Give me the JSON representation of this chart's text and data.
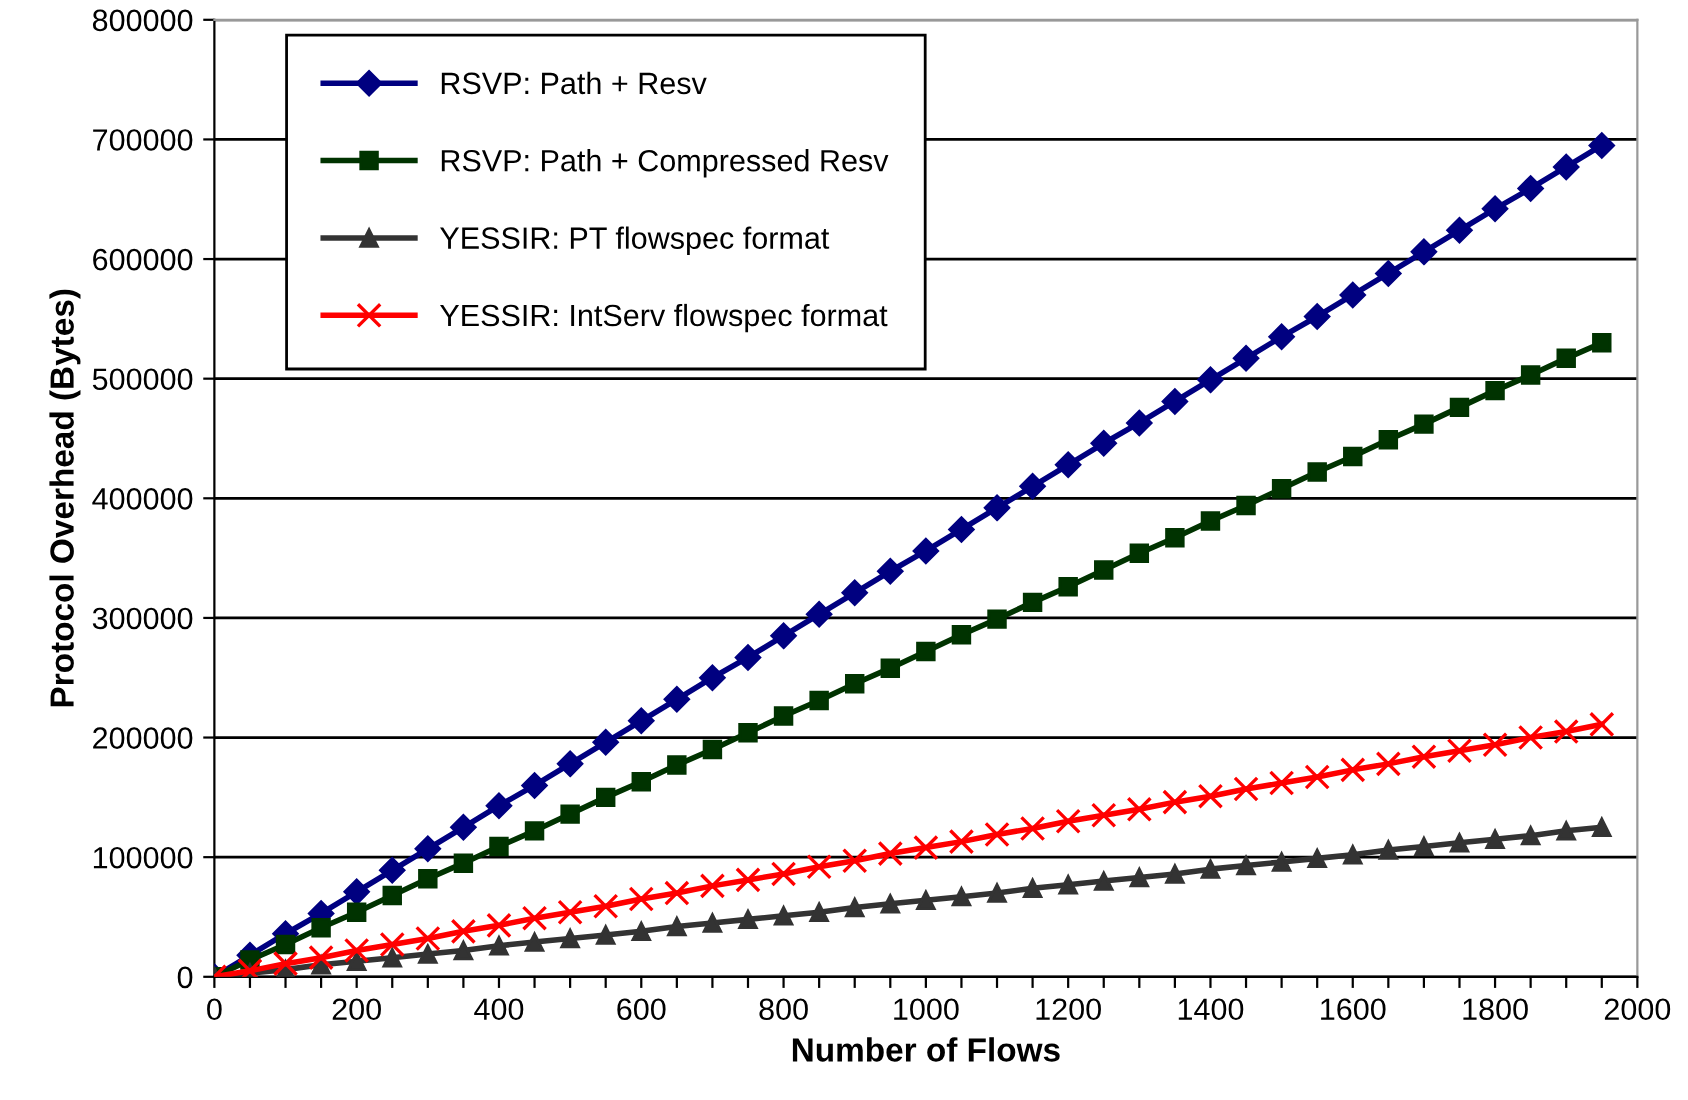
{
  "chart_data": {
    "type": "line",
    "xlabel": "Number of Flows",
    "ylabel": "Protocol Overhead (Bytes)",
    "x": [
      0,
      50,
      100,
      150,
      200,
      250,
      300,
      350,
      400,
      450,
      500,
      550,
      600,
      650,
      700,
      750,
      800,
      850,
      900,
      950,
      1000,
      1050,
      1100,
      1150,
      1200,
      1250,
      1300,
      1350,
      1400,
      1450,
      1500,
      1550,
      1600,
      1650,
      1700,
      1750,
      1800,
      1850,
      1900,
      1950
    ],
    "series": [
      {
        "name": "RSVP: Path + Resv",
        "color": "#000080",
        "marker": "diamond",
        "values": [
          0,
          18000,
          36000,
          53000,
          71000,
          89000,
          107000,
          125000,
          143000,
          160000,
          178000,
          196000,
          214000,
          232000,
          250000,
          267000,
          285000,
          303000,
          321000,
          339000,
          356000,
          374000,
          392000,
          410000,
          428000,
          446000,
          463000,
          481000,
          499000,
          517000,
          535000,
          552000,
          570000,
          588000,
          606000,
          624000,
          642000,
          659000,
          677000,
          695000
        ]
      },
      {
        "name": "RSVP: Path + Compressed Resv",
        "color": "#003300",
        "marker": "square",
        "values": [
          0,
          14000,
          27000,
          41000,
          54000,
          68000,
          82000,
          95000,
          109000,
          122000,
          136000,
          150000,
          163000,
          177000,
          190000,
          204000,
          218000,
          231000,
          245000,
          258000,
          272000,
          286000,
          299000,
          313000,
          326000,
          340000,
          354000,
          367000,
          381000,
          394000,
          408000,
          422000,
          435000,
          449000,
          462000,
          476000,
          490000,
          503000,
          517000,
          530000
        ]
      },
      {
        "name": "YESSIR: PT flowspec format",
        "color": "#333333",
        "marker": "triangle",
        "values": [
          0,
          3000,
          6000,
          10000,
          13000,
          16000,
          19000,
          22000,
          26000,
          29000,
          32000,
          35000,
          38000,
          42000,
          45000,
          48000,
          51000,
          54000,
          58000,
          61000,
          64000,
          67000,
          70000,
          74000,
          77000,
          80000,
          83000,
          86000,
          90000,
          93000,
          96000,
          99000,
          102000,
          106000,
          109000,
          112000,
          115000,
          118000,
          122000,
          125000
        ]
      },
      {
        "name": "YESSIR: IntServ flowspec format",
        "color": "#ff0000",
        "marker": "cross",
        "values": [
          0,
          5000,
          11000,
          16000,
          22000,
          27000,
          32000,
          38000,
          43000,
          49000,
          54000,
          59000,
          65000,
          70000,
          76000,
          81000,
          86000,
          92000,
          97000,
          103000,
          108000,
          113000,
          119000,
          124000,
          130000,
          135000,
          140000,
          146000,
          151000,
          157000,
          162000,
          167000,
          173000,
          178000,
          184000,
          189000,
          194000,
          200000,
          205000,
          211000
        ]
      }
    ],
    "xlim": [
      0,
      2000
    ],
    "ylim": [
      0,
      800000
    ],
    "xticks": [
      0,
      {
        "value": 50,
        "label": null
      },
      {
        "value": 100,
        "label": null
      },
      {
        "value": 150,
        "label": null
      },
      200,
      {
        "value": 250,
        "label": null
      },
      {
        "value": 300,
        "label": null
      },
      {
        "value": 350,
        "label": null
      },
      400,
      {
        "value": 450,
        "label": null
      },
      {
        "value": 500,
        "label": null
      },
      {
        "value": 550,
        "label": null
      },
      600,
      {
        "value": 650,
        "label": null
      },
      {
        "value": 700,
        "label": null
      },
      {
        "value": 750,
        "label": null
      },
      800,
      {
        "value": 850,
        "label": null
      },
      {
        "value": 900,
        "label": null
      },
      {
        "value": 950,
        "label": null
      },
      1000,
      {
        "value": 1050,
        "label": null
      },
      {
        "value": 1100,
        "label": null
      },
      {
        "value": 1150,
        "label": null
      },
      1200,
      {
        "value": 1250,
        "label": null
      },
      {
        "value": 1300,
        "label": null
      },
      {
        "value": 1350,
        "label": null
      },
      1400,
      {
        "value": 1450,
        "label": null
      },
      {
        "value": 1500,
        "label": null
      },
      {
        "value": 1550,
        "label": null
      },
      1600,
      {
        "value": 1650,
        "label": null
      },
      {
        "value": 1700,
        "label": null
      },
      {
        "value": 1750,
        "label": null
      },
      1800,
      {
        "value": 1850,
        "label": null
      },
      {
        "value": 1900,
        "label": null
      },
      {
        "value": 1950,
        "label": null
      },
      2000
    ],
    "yticks": [
      0,
      100000,
      200000,
      300000,
      400000,
      500000,
      600000,
      700000,
      800000
    ],
    "grid": "y",
    "legend": "top left",
    "line_style": "solid"
  }
}
